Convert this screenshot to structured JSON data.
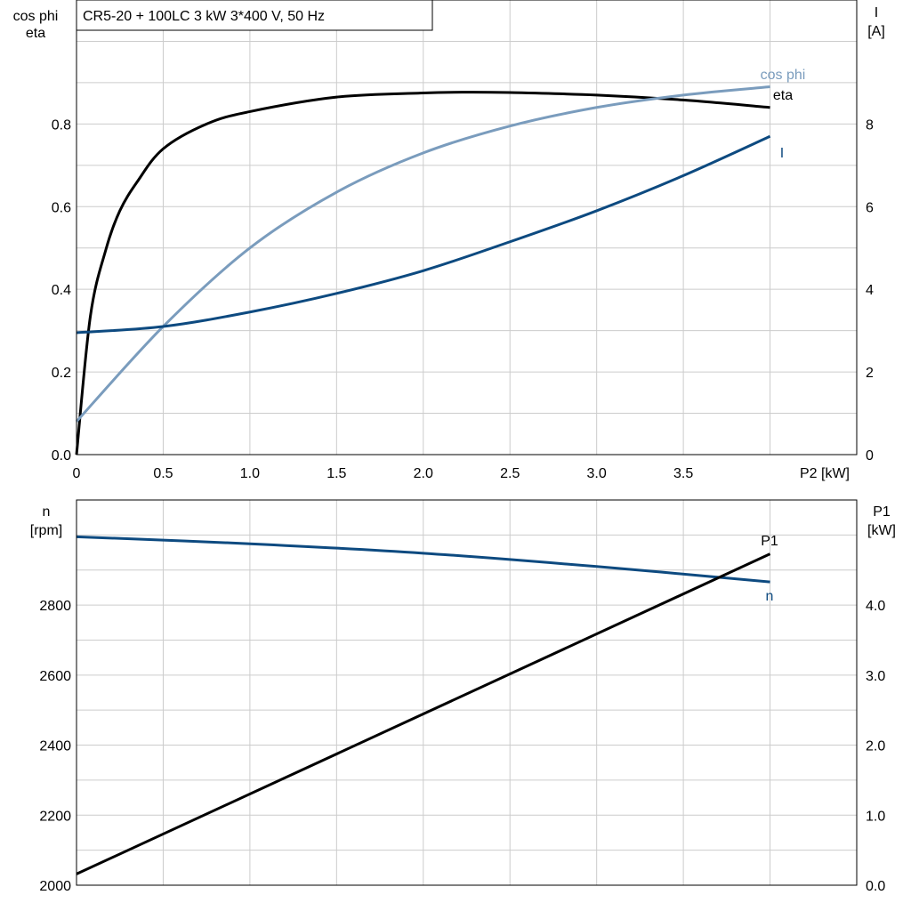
{
  "title": "CR5-20 + 100LC   3 kW   3*400 V, 50 Hz",
  "colors": {
    "eta": "#000000",
    "cos_phi": "#7a9cbd",
    "I": "#0d4a80",
    "n": "#0d4a80",
    "P1": "#000000",
    "grid": "#cccccc"
  },
  "chart_data": [
    {
      "type": "line",
      "xlabel": "P2 [kW]",
      "ylabel_left": [
        "cos phi",
        "eta"
      ],
      "ylabel_right": [
        "I",
        "[A]"
      ],
      "xlim": [
        0,
        4.5
      ],
      "ylim_left": [
        0,
        1.1
      ],
      "ylim_right": [
        0,
        11
      ],
      "xticks": [
        "0",
        "0.5",
        "1.0",
        "1.5",
        "2.0",
        "2.5",
        "3.0",
        "3.5"
      ],
      "xtick_values": [
        0,
        0.5,
        1.0,
        1.5,
        2.0,
        2.5,
        3.0,
        3.5
      ],
      "yticks_left": [
        "0.0",
        "0.2",
        "0.4",
        "0.6",
        "0.8"
      ],
      "yticks_right": [
        "0",
        "2",
        "4",
        "6",
        "8"
      ],
      "grid": true,
      "series": [
        {
          "name": "eta",
          "axis": "left",
          "x": [
            0,
            0.08,
            0.17,
            0.25,
            0.35,
            0.5,
            0.75,
            1.0,
            1.5,
            2.0,
            2.25,
            2.5,
            3.0,
            3.5,
            4.0
          ],
          "y": [
            0,
            0.335,
            0.497,
            0.59,
            0.66,
            0.74,
            0.8,
            0.83,
            0.865,
            0.875,
            0.877,
            0.876,
            0.87,
            0.858,
            0.84
          ]
        },
        {
          "name": "cos phi",
          "axis": "left",
          "x": [
            0,
            0.5,
            1.0,
            1.5,
            2.0,
            2.5,
            3.0,
            3.5,
            4.0
          ],
          "y": [
            0.08,
            0.31,
            0.5,
            0.635,
            0.73,
            0.795,
            0.84,
            0.87,
            0.89
          ]
        },
        {
          "name": "I",
          "axis": "right",
          "x": [
            0,
            0.5,
            1.0,
            1.5,
            2.0,
            2.5,
            3.0,
            3.5,
            4.0
          ],
          "y": [
            2.95,
            3.1,
            3.45,
            3.9,
            4.45,
            5.15,
            5.9,
            6.75,
            7.7
          ]
        }
      ]
    },
    {
      "type": "line",
      "xlim": [
        0,
        4.5
      ],
      "ylabel_left": [
        "n",
        "[rpm]"
      ],
      "ylabel_right": [
        "P1",
        "[kW]"
      ],
      "ylim_left": [
        2000,
        3100
      ],
      "ylim_right": [
        0,
        5.5
      ],
      "yticks_left": [
        "2000",
        "2200",
        "2400",
        "2600",
        "2800"
      ],
      "yticks_right": [
        "0.0",
        "1.0",
        "2.0",
        "3.0",
        "4.0"
      ],
      "grid": true,
      "series": [
        {
          "name": "n",
          "axis": "left",
          "x": [
            0,
            1.0,
            2.0,
            3.0,
            4.0
          ],
          "y": [
            2995,
            2975,
            2948,
            2910,
            2866
          ]
        },
        {
          "name": "P1",
          "axis": "right",
          "x": [
            0,
            4.0
          ],
          "y": [
            0.16,
            4.73
          ]
        }
      ]
    }
  ]
}
